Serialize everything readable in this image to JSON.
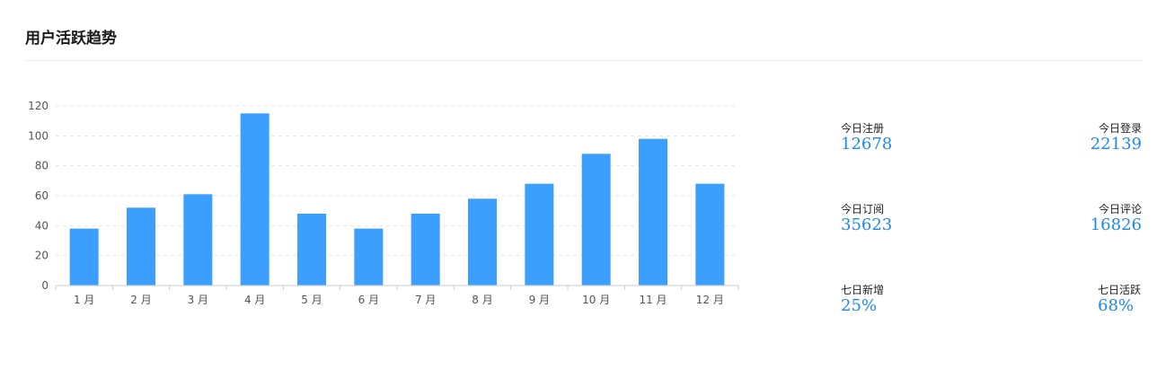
{
  "title": "用户活跃趋势",
  "accent_color": "#3c9ffe",
  "chart_data": {
    "type": "bar",
    "categories": [
      "1 月",
      "2 月",
      "3 月",
      "4 月",
      "5 月",
      "6 月",
      "7 月",
      "8 月",
      "9 月",
      "10 月",
      "11 月",
      "12 月"
    ],
    "values": [
      38,
      52,
      61,
      115,
      48,
      38,
      48,
      58,
      68,
      88,
      98,
      68
    ],
    "yticks": [
      0,
      20,
      40,
      60,
      80,
      100,
      120
    ],
    "ylim": [
      0,
      120
    ],
    "grid": "dashed-horizontal",
    "title": "",
    "xlabel": "",
    "ylabel": ""
  },
  "stats": [
    {
      "label": "今日注册",
      "value": "12678"
    },
    {
      "label": "今日登录",
      "value": "22139"
    },
    {
      "label": "今日订阅",
      "value": "35623"
    },
    {
      "label": "今日评论",
      "value": "16826"
    },
    {
      "label": "七日新增",
      "value": "25%"
    },
    {
      "label": "七日活跃",
      "value": "68%"
    }
  ]
}
